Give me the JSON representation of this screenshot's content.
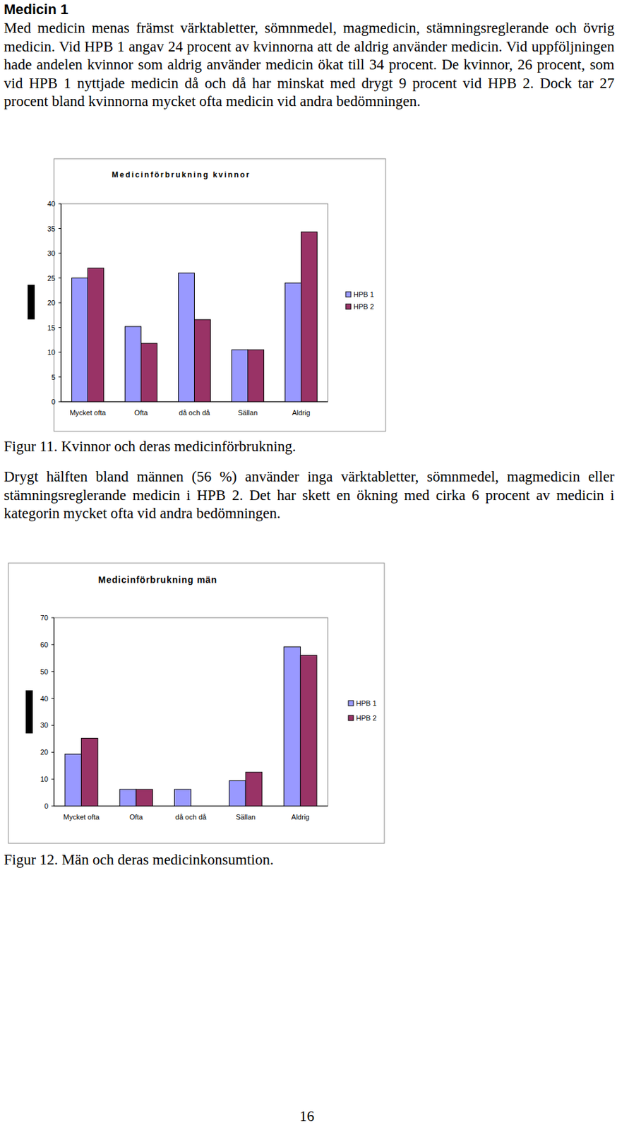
{
  "heading": "Medicin 1",
  "paragraphs": [
    "Med medicin menas främst värktabletter, sömnmedel, magmedicin, stämningsreglerande och övrig medicin. Vid HPB 1 angav 24 procent av kvinnorna att de aldrig använder medicin. Vid uppföljningen hade andelen kvinnor som aldrig använder medicin ökat till 34 procent. De kvinnor, 26 procent, som vid HPB 1 nyttjade medicin då och då har minskat med drygt 9 procent vid HPB 2. Dock tar 27 procent bland kvinnorna mycket ofta medicin vid andra bedömningen.",
    "Drygt hälften bland männen (56 %) använder inga värktabletter, sömnmedel, magmedicin eller stämningsreglerande medicin i HPB 2. Det har skett en ökning med cirka 6 procent av medicin i kategorin mycket ofta vid andra bedömningen."
  ],
  "captions": [
    "Figur 11. Kvinnor och deras medicinförbrukning.",
    "Figur 12. Män och deras medicinkonsumtion."
  ],
  "page_number": "16",
  "chart_data": [
    {
      "type": "bar",
      "title": "Medicinförbrukning kvinnor",
      "categories": [
        "Mycket ofta",
        "Ofta",
        "då och då",
        "Sällan",
        "Aldrig"
      ],
      "series": [
        {
          "name": "HPB 1",
          "color": "#9999ff",
          "values": [
            25,
            15.2,
            26,
            10.5,
            24
          ]
        },
        {
          "name": "HPB 2",
          "color": "#993366",
          "values": [
            27,
            11.8,
            16.6,
            10.5,
            34.3
          ]
        }
      ],
      "ylim": [
        0,
        40
      ],
      "yticks": [
        0,
        5,
        10,
        15,
        20,
        25,
        30,
        35,
        40
      ],
      "grid": false,
      "legend": "right"
    },
    {
      "type": "bar",
      "title": "Medicinförbrukning män",
      "categories": [
        "Mycket ofta",
        "Ofta",
        "då och då",
        "Sällan",
        "Aldrig"
      ],
      "series": [
        {
          "name": "HPB 1",
          "color": "#9999ff",
          "values": [
            19.3,
            6.2,
            6.2,
            9.4,
            59.2
          ]
        },
        {
          "name": "HPB 2",
          "color": "#993366",
          "values": [
            25.2,
            6.2,
            0,
            12.6,
            56
          ]
        }
      ],
      "ylim": [
        0,
        70
      ],
      "yticks": [
        0,
        10,
        20,
        30,
        40,
        50,
        60,
        70
      ],
      "grid": false,
      "legend": "right"
    }
  ]
}
